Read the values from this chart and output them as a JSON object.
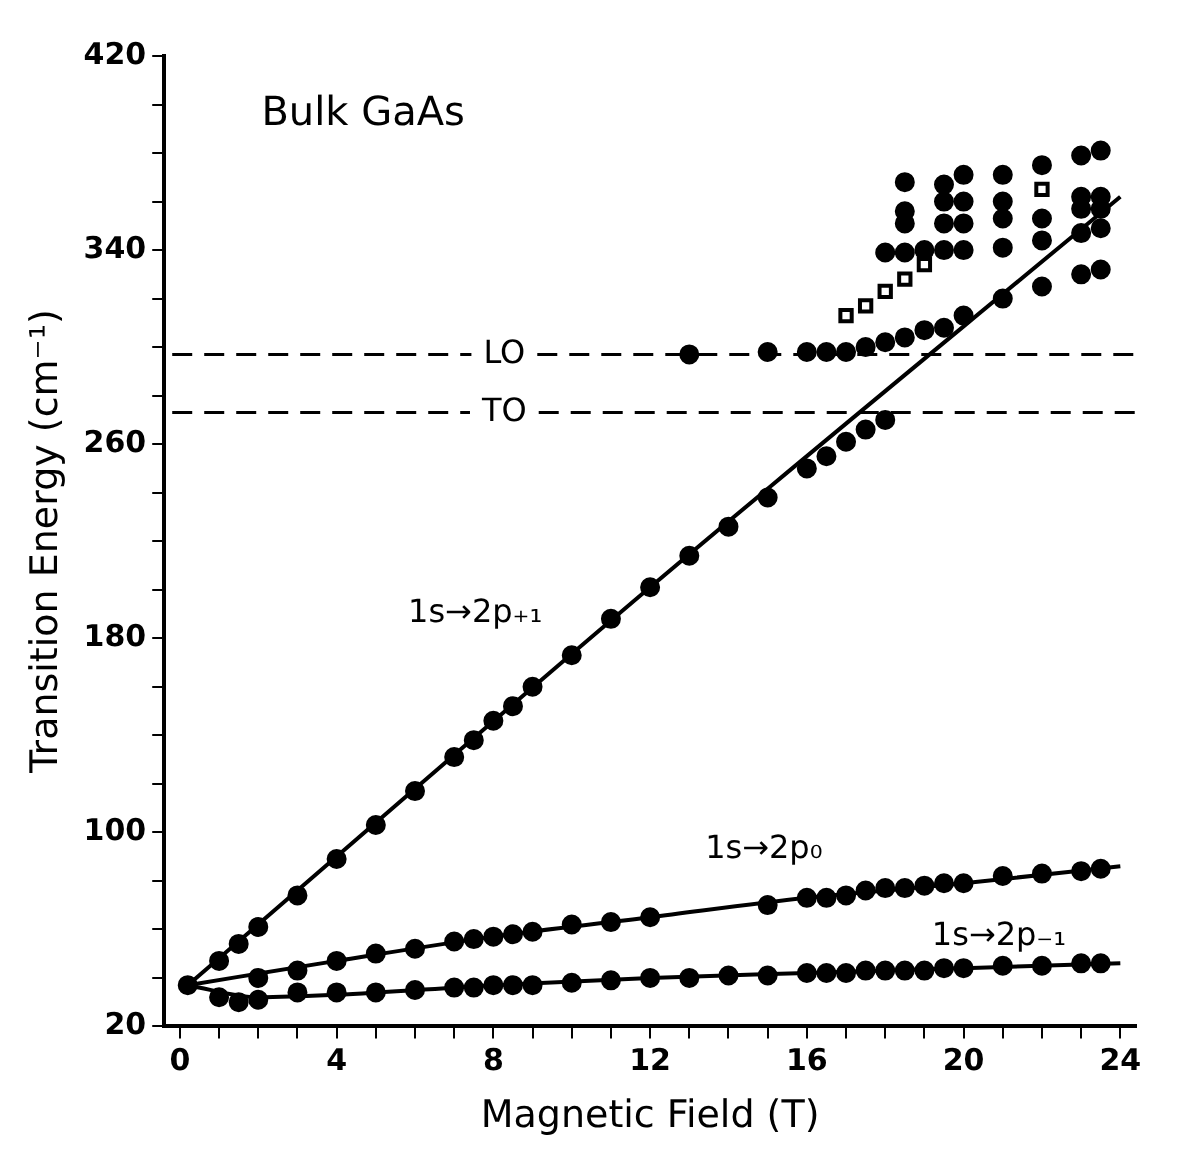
{
  "chart_data": {
    "type": "scatter",
    "xlabel": "Magnetic Field (T)",
    "ylabel": "Transition Energy (cm⁻¹)",
    "xlim": [
      -0.4,
      24.4
    ],
    "ylim": [
      20,
      420
    ],
    "xticks": [
      0,
      {
        "value": 1,
        "label": null
      },
      {
        "value": 2,
        "label": null
      },
      {
        "value": 3,
        "label": null
      },
      4,
      {
        "value": 5,
        "label": null
      },
      {
        "value": 6,
        "label": null
      },
      {
        "value": 7,
        "label": null
      },
      8,
      {
        "value": 9,
        "label": null
      },
      {
        "value": 10,
        "label": null
      },
      {
        "value": 11,
        "label": null
      },
      12,
      {
        "value": 13,
        "label": null
      },
      {
        "value": 14,
        "label": null
      },
      {
        "value": 15,
        "label": null
      },
      16,
      {
        "value": 17,
        "label": null
      },
      {
        "value": 18,
        "label": null
      },
      {
        "value": 19,
        "label": null
      },
      20,
      {
        "value": 21,
        "label": null
      },
      {
        "value": 22,
        "label": null
      },
      {
        "value": 23,
        "label": null
      },
      24
    ],
    "yticks": [
      20,
      {
        "value": 40,
        "label": null
      },
      {
        "value": 60,
        "label": null
      },
      {
        "value": 80,
        "label": null
      },
      100,
      {
        "value": 120,
        "label": null
      },
      {
        "value": 140,
        "label": null
      },
      {
        "value": 160,
        "label": null
      },
      180,
      {
        "value": 200,
        "label": null
      },
      {
        "value": 220,
        "label": null
      },
      {
        "value": 240,
        "label": null
      },
      260,
      {
        "value": 280,
        "label": null
      },
      {
        "value": 300,
        "label": null
      },
      {
        "value": 320,
        "label": null
      },
      340,
      {
        "value": 360,
        "label": null
      },
      {
        "value": 380,
        "label": null
      },
      {
        "value": 400,
        "label": null
      },
      420
    ],
    "grid": false,
    "legend": false,
    "marker": "circle",
    "series": [
      {
        "color": "#000000",
        "x": [
          0.2,
          1,
          1.5,
          2,
          3,
          4,
          5,
          6,
          7,
          7.5,
          8,
          8.5,
          9,
          10,
          11,
          12,
          13,
          14,
          15,
          16,
          16.5,
          17,
          17.5,
          18
        ],
        "values": [
          37,
          47,
          54,
          61,
          74,
          89,
          103,
          117,
          131,
          138,
          146,
          152,
          160,
          173,
          188,
          201,
          214,
          226,
          238,
          250,
          255,
          261,
          266,
          270
        ]
      },
      {
        "color": "#000000",
        "x": [
          2,
          3,
          4,
          5,
          6,
          7,
          7.5,
          8,
          8.5,
          9,
          10,
          11,
          12,
          15,
          16,
          16.5,
          17,
          17.5,
          18,
          18.5,
          19,
          19.5,
          20,
          21,
          22,
          23,
          23.5
        ],
        "values": [
          40,
          43,
          47,
          50,
          52,
          55,
          56,
          57,
          58,
          59,
          62,
          63,
          65,
          70,
          73,
          73,
          74,
          76,
          77,
          77,
          78,
          79,
          79,
          82,
          83,
          84,
          85
        ]
      },
      {
        "color": "#000000",
        "x": [
          1,
          1.5,
          2,
          3,
          4,
          5,
          6,
          7,
          7.5,
          8,
          8.5,
          9,
          10,
          11,
          12,
          13,
          14,
          15,
          16,
          16.5,
          17,
          17.5,
          18,
          18.5,
          19,
          19.5,
          20,
          21,
          22,
          23,
          23.5
        ],
        "values": [
          32,
          30,
          31,
          34,
          34,
          34,
          35,
          36,
          36,
          37,
          37,
          37,
          38,
          39,
          40,
          40,
          41,
          41,
          42,
          42,
          42,
          43,
          43,
          43,
          43,
          44,
          44,
          45,
          45,
          46,
          46
        ]
      },
      {
        "color": "#000000",
        "x": [
          13,
          15,
          16,
          16.5,
          17,
          17.5,
          18,
          18.5,
          19,
          19.5,
          20,
          21,
          22,
          23,
          23.5,
          18,
          18.5,
          18.5,
          18.5,
          18.5,
          19,
          19.5,
          19.5,
          19.5,
          19.5,
          20,
          20,
          20,
          20,
          21,
          21,
          21,
          21,
          22,
          22,
          22,
          23,
          23,
          23,
          23,
          23.5,
          23.5,
          23.5,
          23.5
        ],
        "values": [
          297,
          298,
          298,
          298,
          298,
          300,
          302,
          304,
          307,
          308,
          313,
          320,
          325,
          330,
          332,
          339,
          339,
          351,
          356,
          368,
          340,
          340,
          351,
          360,
          367,
          340,
          351,
          360,
          371,
          341,
          353,
          360,
          371,
          344,
          353,
          375,
          347,
          357,
          362,
          379,
          349,
          357,
          362,
          381
        ]
      },
      {
        "color": "#000000",
        "marker": "square",
        "x": [
          17,
          17.5,
          18,
          18.5,
          19,
          22
        ],
        "values": [
          313,
          317,
          323,
          328,
          334,
          365
        ]
      },
      {
        "type": "line",
        "color": "#000000",
        "marker": "none",
        "x": [
          0.2,
          12,
          24
        ],
        "values": [
          37,
          201,
          362
        ]
      },
      {
        "type": "line",
        "color": "#000000",
        "marker": "none",
        "x": [
          0.2,
          4,
          8,
          12,
          16,
          20,
          24
        ],
        "values": [
          37,
          47,
          57,
          65,
          73,
          79,
          86
        ]
      },
      {
        "type": "line",
        "color": "#000000",
        "marker": "none",
        "x": [
          0.2,
          2,
          4,
          8,
          12,
          16,
          20,
          24
        ],
        "values": [
          37,
          32,
          33,
          37,
          40,
          42,
          44,
          46
        ]
      }
    ],
    "ref_lines": [
      {
        "axis": "y",
        "value": 297,
        "label": "LO",
        "line_style": "dashed"
      },
      {
        "axis": "y",
        "value": 273,
        "label": "TO",
        "line_style": "dashed"
      }
    ],
    "annotations": [
      "Bulk GaAs",
      "1s→2p₊₁",
      "1s→2p₀",
      "1s→2p₋₁"
    ]
  }
}
